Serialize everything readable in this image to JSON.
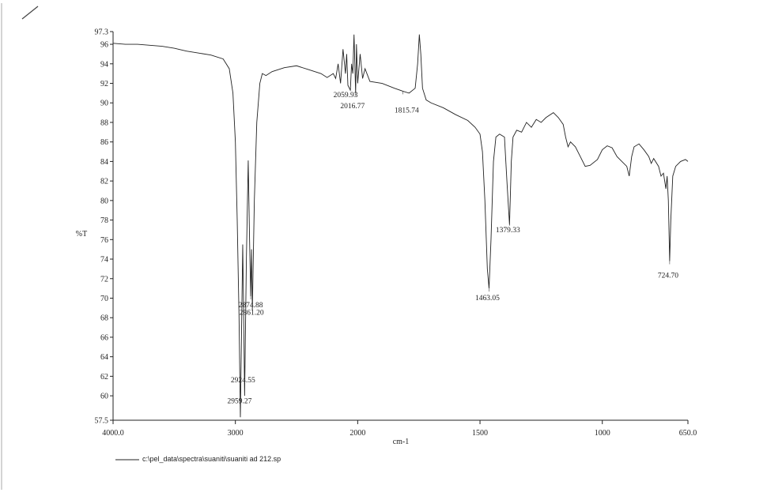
{
  "chart_data": {
    "type": "line",
    "ylabel": "%T",
    "xlabel": "cm-1",
    "xlim": [
      4000,
      650
    ],
    "x_scale_break": 2000,
    "ylim": [
      57.5,
      97.3
    ],
    "xticks": [
      {
        "value": 4000,
        "label": "4000.0"
      },
      3000,
      2000,
      1500,
      1000,
      {
        "value": 650,
        "label": "650.0"
      }
    ],
    "yticks": [
      57.5,
      60,
      62,
      64,
      66,
      68,
      70,
      72,
      74,
      76,
      78,
      80,
      82,
      84,
      86,
      88,
      90,
      92,
      94,
      96,
      97.3
    ],
    "x": [
      4000,
      3900,
      3800,
      3700,
      3600,
      3500,
      3400,
      3300,
      3200,
      3100,
      3050,
      3020,
      3000,
      2985,
      2970,
      2959.27,
      2948,
      2940,
      2932,
      2924.55,
      2910,
      2895,
      2884,
      2874.88,
      2868,
      2861.2,
      2845,
      2825,
      2800,
      2780,
      2750,
      2700,
      2600,
      2500,
      2400,
      2300,
      2250,
      2200,
      2180,
      2160,
      2140,
      2120,
      2100,
      2090,
      2080,
      2059.93,
      2050,
      2040,
      2030,
      2016.77,
      2010,
      2000,
      1990,
      1980,
      1970,
      1950,
      1900,
      1850,
      1815.74,
      1790,
      1765,
      1755,
      1748,
      1742,
      1735,
      1720,
      1700,
      1650,
      1600,
      1550,
      1520,
      1500,
      1490,
      1480,
      1470,
      1463.05,
      1455,
      1445,
      1435,
      1420,
      1400,
      1390,
      1379.33,
      1372,
      1365,
      1350,
      1330,
      1310,
      1290,
      1270,
      1250,
      1230,
      1200,
      1180,
      1160,
      1150,
      1140,
      1130,
      1110,
      1090,
      1070,
      1050,
      1020,
      1000,
      980,
      960,
      940,
      920,
      900,
      890,
      880,
      870,
      850,
      830,
      810,
      800,
      790,
      770,
      760,
      750,
      740,
      735,
      730,
      724.7,
      720,
      712,
      700,
      680,
      660,
      650
    ],
    "series": [
      {
        "name": "c:\\pel_data\\spectra\\suaniti\\suaniti ad 212.sp",
        "color": "#222222",
        "values": [
          96.1,
          96.0,
          96.0,
          95.9,
          95.8,
          95.6,
          95.3,
          95.1,
          94.9,
          94.5,
          93.5,
          91,
          86,
          78,
          68,
          57.8,
          68,
          75.5,
          68,
          60.0,
          74,
          84.1,
          76,
          70.2,
          75,
          68.8,
          80,
          88,
          92,
          93,
          92.8,
          93.2,
          93.6,
          93.8,
          93.4,
          93,
          92.6,
          93,
          92.5,
          94,
          92,
          95.5,
          93,
          95,
          91.8,
          91.3,
          94,
          93,
          97.0,
          91.0,
          96,
          92,
          95,
          92.5,
          93.5,
          92.2,
          92,
          91.5,
          91.2,
          91.0,
          91.5,
          94,
          97.0,
          95,
          91.5,
          90.3,
          90.0,
          89.5,
          88.8,
          88.2,
          87.5,
          86.8,
          85,
          80,
          73,
          71.0,
          76,
          84,
          86.5,
          86.8,
          86.5,
          82,
          77.5,
          84,
          86.5,
          87.2,
          87.0,
          88,
          87.5,
          88.3,
          88.0,
          88.5,
          89.0,
          88.5,
          87.8,
          86.5,
          85.5,
          86.0,
          85.5,
          84.5,
          83.5,
          83.6,
          84.2,
          85.2,
          85.6,
          85.4,
          84.5,
          84.0,
          83.5,
          82.5,
          84.5,
          85.5,
          85.8,
          85.2,
          84.5,
          83.8,
          84.3,
          83.5,
          82.5,
          82.8,
          81.2,
          82.5,
          80,
          73.8,
          78,
          82.5,
          83.5,
          84,
          84.2,
          84.0
        ]
      }
    ],
    "peaks": [
      {
        "x": 2059.93,
        "y": 91.3,
        "label": "2059.93"
      },
      {
        "x": 2016.77,
        "y": 91.0,
        "label": "2016.77"
      },
      {
        "x": 1815.74,
        "y": 91.2,
        "label": "1815.74"
      },
      {
        "x": 2874.88,
        "y": 70.2,
        "label": "2874.88"
      },
      {
        "x": 2861.2,
        "y": 68.8,
        "label": "2861.20"
      },
      {
        "x": 2924.55,
        "y": 60.0,
        "label": "2924.55"
      },
      {
        "x": 2959.27,
        "y": 57.8,
        "label": "2959.27"
      },
      {
        "x": 1463.05,
        "y": 71.0,
        "label": "1463.05"
      },
      {
        "x": 1379.33,
        "y": 77.5,
        "label": "1379.33"
      },
      {
        "x": 724.7,
        "y": 73.8,
        "label": "724.70"
      }
    ]
  }
}
